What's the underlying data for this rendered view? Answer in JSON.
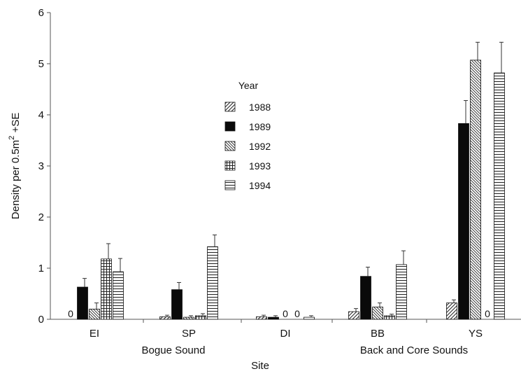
{
  "chart_data": {
    "type": "bar",
    "title": "",
    "xlabel": "Site",
    "ylabel": "Density per 0.5m² +SE",
    "ylabel_parts": {
      "main": "Density per 0.5m",
      "sup": "2",
      "tail": " +SE"
    },
    "ylim": [
      0,
      6
    ],
    "yticks": [
      "0",
      "1",
      "2",
      "3",
      "4",
      "5",
      "6"
    ],
    "categories": [
      "EI",
      "SP",
      "DI",
      "BB",
      "YS"
    ],
    "groups": [
      {
        "label": "Bogue Sound",
        "categories": [
          "EI",
          "SP"
        ]
      },
      {
        "label": "Back and Core Sounds",
        "categories": [
          "BB",
          "YS"
        ]
      }
    ],
    "legend": {
      "title": "Year",
      "position": "center-left"
    },
    "grid": false,
    "series": [
      {
        "name": "1988",
        "pattern": "diag-up",
        "values": [
          0,
          0.05,
          0.05,
          0.15,
          0.32
        ],
        "errors": [
          0,
          0.03,
          0.03,
          0.06,
          0.06
        ]
      },
      {
        "name": "1989",
        "pattern": "solid",
        "values": [
          0.63,
          0.58,
          0.04,
          0.84,
          3.83
        ],
        "errors": [
          0.17,
          0.14,
          0.03,
          0.18,
          0.45
        ]
      },
      {
        "name": "1992",
        "pattern": "diag-down",
        "values": [
          0.2,
          0.04,
          0,
          0.24,
          5.07
        ],
        "errors": [
          0.12,
          0.03,
          0,
          0.08,
          0.35
        ]
      },
      {
        "name": "1993",
        "pattern": "grid",
        "values": [
          1.18,
          0.07,
          0,
          0.07,
          0
        ],
        "errors": [
          0.3,
          0.04,
          0,
          0.03,
          0
        ]
      },
      {
        "name": "1994",
        "pattern": "horizontal",
        "values": [
          0.93,
          1.42,
          0.04,
          1.07,
          4.82
        ],
        "errors": [
          0.26,
          0.23,
          0.03,
          0.27,
          0.6
        ]
      }
    ],
    "zero_labels": [
      {
        "category": "EI",
        "series": "1988",
        "text": "0"
      },
      {
        "category": "DI",
        "series": "1992",
        "text": "0"
      },
      {
        "category": "DI",
        "series": "1993",
        "text": "0"
      },
      {
        "category": "YS",
        "series": "1993",
        "text": "0"
      }
    ]
  }
}
